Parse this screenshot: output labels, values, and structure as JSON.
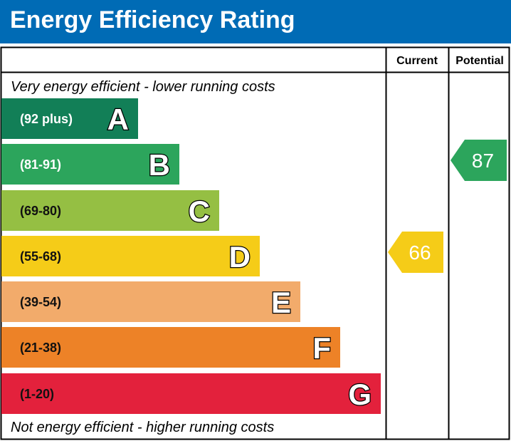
{
  "title": "Energy Efficiency Rating",
  "chart_data": {
    "type": "bar",
    "columns": [
      "Current",
      "Potential"
    ],
    "top_note": "Very energy efficient - lower running costs",
    "bottom_note": "Not energy efficient - higher running costs",
    "bands": [
      {
        "letter": "A",
        "range": "(92 plus)",
        "color": "#127f57"
      },
      {
        "letter": "B",
        "range": "(81-91)",
        "color": "#2ca55c"
      },
      {
        "letter": "C",
        "range": "(69-80)",
        "color": "#95bf43"
      },
      {
        "letter": "D",
        "range": "(55-68)",
        "color": "#f5cc18"
      },
      {
        "letter": "E",
        "range": "(39-54)",
        "color": "#f2ab6b"
      },
      {
        "letter": "F",
        "range": "(21-38)",
        "color": "#ed8227"
      },
      {
        "letter": "G",
        "range": "(1-20)",
        "color": "#e3213c"
      }
    ],
    "current": {
      "value": 66,
      "band": "D",
      "color": "#f5cc18"
    },
    "potential": {
      "value": 87,
      "band": "B",
      "color": "#2ca55c"
    }
  }
}
